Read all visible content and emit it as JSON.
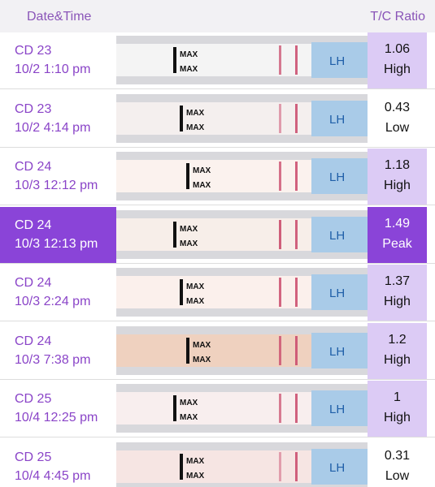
{
  "header": {
    "left": "Date&Time",
    "right": "T/C Ratio"
  },
  "strip": {
    "max": "MAX",
    "brand": "LH"
  },
  "rows": [
    {
      "day": "CD 23",
      "time": "10/2 1:10 pm",
      "ratio": 1.06,
      "level": "High"
    },
    {
      "day": "CD 23",
      "time": "10/2 4:14 pm",
      "ratio": 0.43,
      "level": "Low"
    },
    {
      "day": "CD 24",
      "time": "10/3 12:12 pm",
      "ratio": 1.18,
      "level": "High"
    },
    {
      "day": "CD 24",
      "time": "10/3 12:13 pm",
      "ratio": 1.49,
      "level": "Peak",
      "selected": true
    },
    {
      "day": "CD 24",
      "time": "10/3 2:24 pm",
      "ratio": 1.37,
      "level": "High"
    },
    {
      "day": "CD 24",
      "time": "10/3 7:38 pm",
      "ratio": 1.2,
      "level": "High"
    },
    {
      "day": "CD 25",
      "time": "10/4 12:25 pm",
      "ratio": 1,
      "level": "High"
    },
    {
      "day": "CD 25",
      "time": "10/4 4:45 pm",
      "ratio": 0.31,
      "level": "Low"
    }
  ]
}
